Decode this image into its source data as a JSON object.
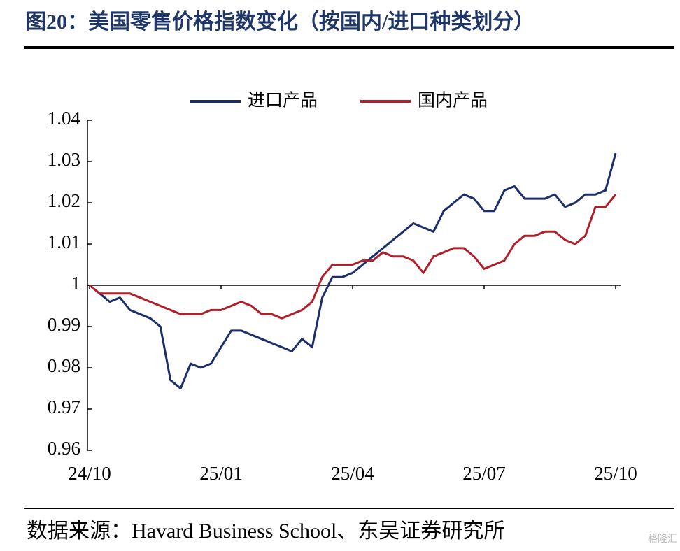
{
  "chart_data": {
    "type": "line",
    "title": "图20：美国零售价格指数变化（按国内/进口种类划分）",
    "source": "数据来源：Havard Business School、东吴证券研究所",
    "watermark": "格隆汇",
    "categories": [
      "24/10",
      null,
      null,
      null,
      null,
      null,
      null,
      null,
      null,
      null,
      null,
      null,
      null,
      "25/01",
      null,
      null,
      null,
      null,
      null,
      null,
      null,
      null,
      null,
      null,
      null,
      null,
      "25/04",
      null,
      null,
      null,
      null,
      null,
      null,
      null,
      null,
      null,
      null,
      null,
      null,
      "25/07",
      null,
      null,
      null,
      null,
      null,
      null,
      null,
      null,
      null,
      null,
      null,
      null,
      "25/10"
    ],
    "series": [
      {
        "name": "进口产品",
        "color": "#1b2f6b",
        "values": [
          1.0,
          0.998,
          0.996,
          0.997,
          0.994,
          0.993,
          0.992,
          0.99,
          0.977,
          0.975,
          0.981,
          0.98,
          0.981,
          0.985,
          0.989,
          0.989,
          0.988,
          0.987,
          0.986,
          0.985,
          0.984,
          0.987,
          0.985,
          0.997,
          1.002,
          1.002,
          1.003,
          1.005,
          1.007,
          1.009,
          1.011,
          1.013,
          1.015,
          1.014,
          1.013,
          1.018,
          1.02,
          1.022,
          1.021,
          1.018,
          1.018,
          1.023,
          1.024,
          1.021,
          1.021,
          1.021,
          1.022,
          1.019,
          1.02,
          1.022,
          1.022,
          1.023,
          1.032
        ]
      },
      {
        "name": "国内产品",
        "color": "#b01f2a",
        "values": [
          1.0,
          0.998,
          0.998,
          0.998,
          0.998,
          0.997,
          0.996,
          0.995,
          0.994,
          0.993,
          0.993,
          0.993,
          0.994,
          0.994,
          0.995,
          0.996,
          0.995,
          0.993,
          0.993,
          0.992,
          0.993,
          0.994,
          0.996,
          1.002,
          1.005,
          1.005,
          1.005,
          1.006,
          1.006,
          1.008,
          1.007,
          1.007,
          1.006,
          1.003,
          1.007,
          1.008,
          1.009,
          1.009,
          1.007,
          1.004,
          1.005,
          1.006,
          1.01,
          1.012,
          1.012,
          1.013,
          1.013,
          1.011,
          1.01,
          1.012,
          1.019,
          1.019,
          1.022
        ]
      }
    ],
    "ylim": [
      0.96,
      1.04
    ],
    "yticks": [
      0.96,
      0.97,
      0.98,
      0.99,
      1,
      1.01,
      1.02,
      1.03,
      1.04
    ],
    "x_axis_crosses": 1,
    "grid": false,
    "legend": "top"
  }
}
